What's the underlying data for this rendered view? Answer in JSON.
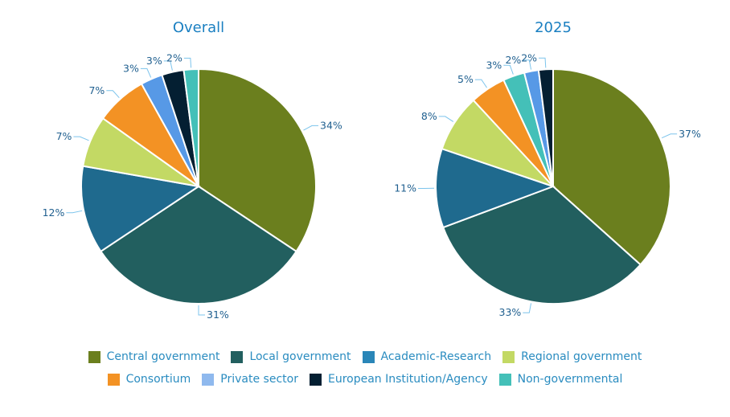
{
  "chart_data": [
    {
      "type": "pie",
      "title": "Overall",
      "categories": [
        "Central government",
        "Local government",
        "Academic-Research",
        "Regional government",
        "Consortium",
        "Private sector",
        "European Institution/Agency",
        "Non-governmental"
      ],
      "values": [
        34,
        31,
        12,
        7,
        7,
        3,
        3,
        2
      ],
      "labels": [
        "34%",
        "31%",
        "12%",
        "7%",
        "7%",
        "3%",
        "3%",
        "2%"
      ]
    },
    {
      "type": "pie",
      "title": "2025",
      "categories": [
        "Central government",
        "Local government",
        "Academic-Research",
        "Regional government",
        "Consortium",
        "Non-governmental",
        "Private sector",
        "European Institution/Agency"
      ],
      "values": [
        37,
        33,
        11,
        8,
        5,
        3,
        2,
        2
      ],
      "labels": [
        "37%",
        "33%",
        "11%",
        "8%",
        "5%",
        "3%",
        "2%",
        "2%"
      ]
    }
  ],
  "legend": {
    "placement": "bottom",
    "items": [
      {
        "label": "Central government",
        "color": "#6b7f1e"
      },
      {
        "label": "Local government",
        "color": "#225f5f"
      },
      {
        "label": "Academic-Research",
        "color": "#2a86b8"
      },
      {
        "label": "Regional government",
        "color": "#c3d964"
      },
      {
        "label": "Consortium",
        "color": "#f39224"
      },
      {
        "label": "Private sector",
        "color": "#8fb9ee"
      },
      {
        "label": "European Institution/Agency",
        "color": "#041f32"
      },
      {
        "label": "Non-governmental",
        "color": "#44c0b8"
      }
    ]
  },
  "slice_colors": {
    "Central government": "#6b7f1e",
    "Local government": "#225f5f",
    "Academic-Research": "#1f6a8e",
    "Regional government": "#c3d964",
    "Consortium": "#f39224",
    "Private sector": "#5799e6",
    "European Institution/Agency": "#041f32",
    "Non-governmental": "#44c0b8"
  }
}
